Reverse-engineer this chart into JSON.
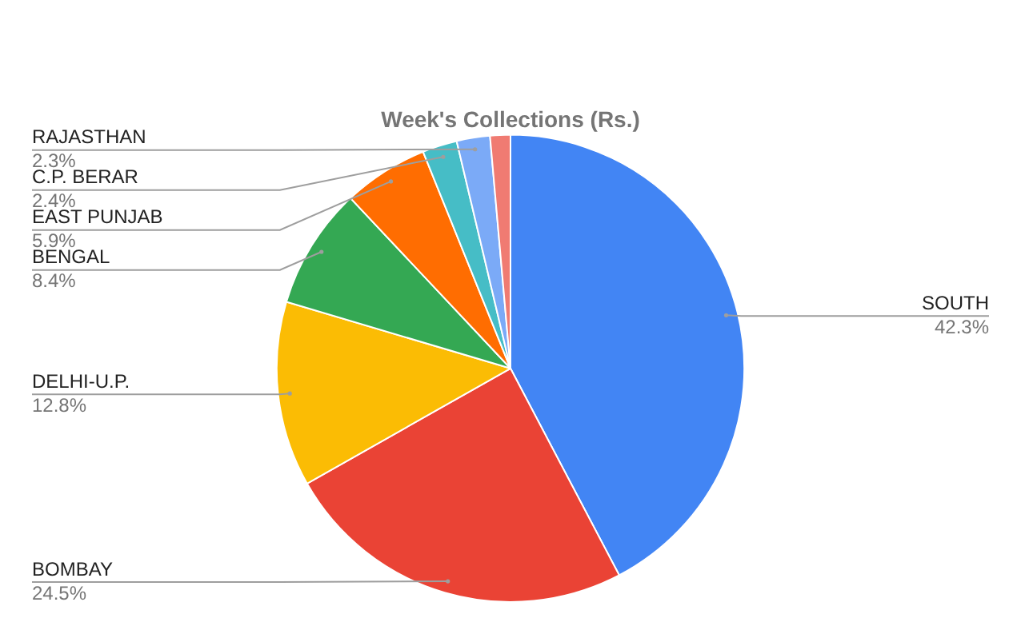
{
  "chart_data": {
    "type": "pie",
    "title": "Week's Collections (Rs.)",
    "categories": [
      "SOUTH",
      "BOMBAY",
      "DELHI-U.P.",
      "BENGAL",
      "EAST PUNJAB",
      "C.P. BERAR",
      "RAJASTHAN",
      null
    ],
    "values": [
      42.3,
      24.5,
      12.8,
      8.4,
      5.9,
      2.4,
      2.3,
      1.4
    ],
    "value_labels": [
      "42.3%",
      "24.5%",
      "12.8%",
      "8.4%",
      "5.9%",
      "2.4%",
      "2.3%",
      null
    ],
    "colors": [
      "#4285f4",
      "#ea4335",
      "#fbbc04",
      "#34a853",
      "#ff6d01",
      "#46bdc6",
      "#7baaf7",
      "#f07b72"
    ],
    "legend": false
  }
}
